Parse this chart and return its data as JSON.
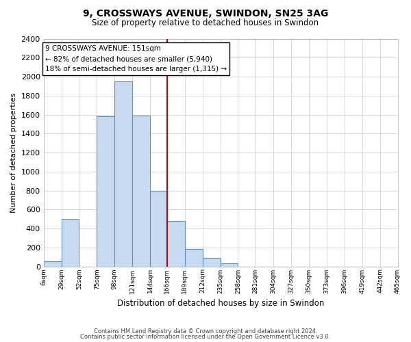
{
  "title": "9, CROSSWAYS AVENUE, SWINDON, SN25 3AG",
  "subtitle": "Size of property relative to detached houses in Swindon",
  "xlabel": "Distribution of detached houses by size in Swindon",
  "ylabel": "Number of detached properties",
  "bin_labels": [
    "6sqm",
    "29sqm",
    "52sqm",
    "75sqm",
    "98sqm",
    "121sqm",
    "144sqm",
    "166sqm",
    "189sqm",
    "212sqm",
    "235sqm",
    "258sqm",
    "281sqm",
    "304sqm",
    "327sqm",
    "350sqm",
    "373sqm",
    "396sqm",
    "419sqm",
    "442sqm",
    "465sqm"
  ],
  "bar_values": [
    55,
    500,
    0,
    1580,
    1950,
    1590,
    800,
    480,
    185,
    90,
    30,
    0,
    0,
    0,
    0,
    0,
    0,
    0,
    0,
    0
  ],
  "bar_color": "#c8daf0",
  "bar_edge_color": "#5b8ec4",
  "property_line_color": "#c00000",
  "annotation_text": "9 CROSSWAYS AVENUE: 151sqm\n← 82% of detached houses are smaller (5,940)\n18% of semi-detached houses are larger (1,315) →",
  "annotation_box_color": "#ffffff",
  "annotation_box_edge_color": "#000000",
  "ylim": [
    0,
    2400
  ],
  "yticks": [
    0,
    200,
    400,
    600,
    800,
    1000,
    1200,
    1400,
    1600,
    1800,
    2000,
    2200,
    2400
  ],
  "bin_edges": [
    6,
    29,
    52,
    75,
    98,
    121,
    144,
    166,
    189,
    212,
    235,
    258,
    281,
    304,
    327,
    350,
    373,
    396,
    419,
    442,
    465
  ],
  "property_line_bin_index": 7,
  "footer_line1": "Contains HM Land Registry data © Crown copyright and database right 2024.",
  "footer_line2": "Contains public sector information licensed under the Open Government Licence v3.0.",
  "background_color": "#ffffff",
  "grid_color": "#c8c8c8"
}
